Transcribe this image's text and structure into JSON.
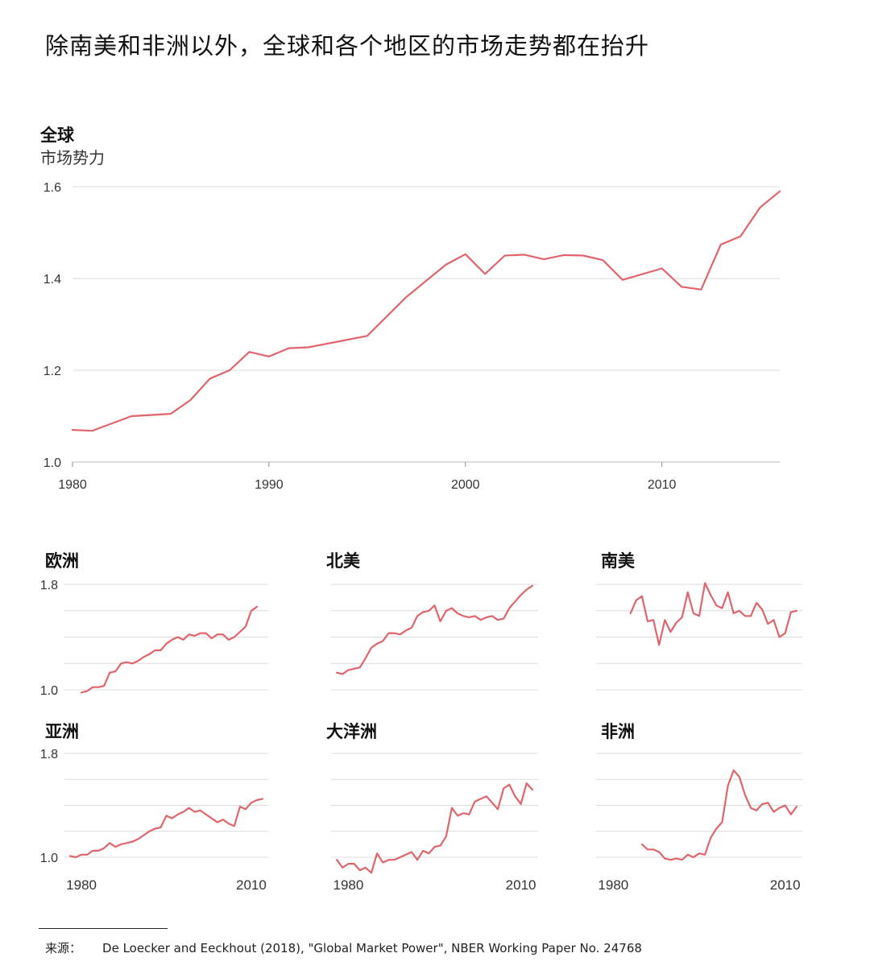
{
  "title": "除南美和非洲以外，全球和各个地区的市场走势都在抬升",
  "source": {
    "label": "来源：",
    "text": "De Loecker and Eeckhout (2018), \"Global Market Power\", NBER Working Paper No. 24768"
  },
  "colors": {
    "line": "#e0646b",
    "grid": "#dcdcdc",
    "axis": "#888888",
    "text": "#333333"
  },
  "chart_data": [
    {
      "type": "line",
      "title": "全球",
      "ylabel": "市场势力",
      "xlim": [
        1980,
        2016
      ],
      "ylim": [
        1.0,
        1.6
      ],
      "yticks": [
        1.0,
        1.2,
        1.4,
        1.6
      ],
      "ytick_labels": [
        "1.0",
        "1.2",
        "1.4",
        "1.6"
      ],
      "xticks": [
        1980,
        1990,
        2000,
        2010
      ],
      "xtick_labels": [
        "1980",
        "1990",
        "2000",
        "2010"
      ],
      "x": [
        1980,
        1981,
        1983,
        1985,
        1986,
        1987,
        1988,
        1989,
        1990,
        1991,
        1992,
        1995,
        1997,
        1999,
        2000,
        2001,
        2002,
        2003,
        2004,
        2005,
        2006,
        2007,
        2008,
        2010,
        2011,
        2012,
        2013,
        2014,
        2015,
        2016
      ],
      "y": [
        1.07,
        1.068,
        1.1,
        1.105,
        1.135,
        1.182,
        1.2,
        1.24,
        1.23,
        1.248,
        1.25,
        1.275,
        1.36,
        1.43,
        1.453,
        1.41,
        1.45,
        1.452,
        1.442,
        1.451,
        1.45,
        1.44,
        1.397,
        1.422,
        1.382,
        1.376,
        1.474,
        1.492,
        1.555,
        1.59
      ]
    },
    {
      "type": "line",
      "title": "欧洲",
      "xlim": [
        1977,
        2013
      ],
      "ylim": [
        1.0,
        1.8
      ],
      "yticks": [
        1.0,
        1.2,
        1.4,
        1.6,
        1.8
      ],
      "ytick_labels": [
        "1.0",
        "",
        "",
        "",
        "1.8"
      ],
      "xticks": [],
      "xtick_labels": [],
      "x": [
        1980,
        1981,
        1982,
        1983,
        1984,
        1985,
        1986,
        1987,
        1988,
        1989,
        1990,
        1991,
        1992,
        1993,
        1994,
        1995,
        1996,
        1997,
        1998,
        1999,
        2000,
        2001,
        2002,
        2003,
        2004,
        2005,
        2006,
        2007,
        2008,
        2009,
        2010,
        2011
      ],
      "y": [
        0.98,
        0.99,
        1.02,
        1.02,
        1.03,
        1.13,
        1.14,
        1.2,
        1.21,
        1.2,
        1.22,
        1.25,
        1.27,
        1.3,
        1.3,
        1.35,
        1.38,
        1.4,
        1.38,
        1.42,
        1.41,
        1.43,
        1.43,
        1.39,
        1.42,
        1.42,
        1.38,
        1.4,
        1.44,
        1.48,
        1.6,
        1.63
      ]
    },
    {
      "type": "line",
      "title": "北美",
      "xlim": [
        1977,
        2013
      ],
      "ylim": [
        1.0,
        1.8
      ],
      "yticks": [
        1.0,
        1.2,
        1.4,
        1.6,
        1.8
      ],
      "ytick_labels": [
        "",
        "",
        "",
        "",
        ""
      ],
      "xticks": [],
      "xtick_labels": [],
      "x": [
        1978,
        1979,
        1980,
        1981,
        1982,
        1983,
        1984,
        1985,
        1986,
        1987,
        1988,
        1989,
        1990,
        1991,
        1992,
        1993,
        1994,
        1995,
        1996,
        1997,
        1998,
        1999,
        2000,
        2001,
        2002,
        2003,
        2004,
        2005,
        2006,
        2007,
        2008,
        2009,
        2010,
        2011,
        2012
      ],
      "y": [
        1.13,
        1.12,
        1.15,
        1.16,
        1.17,
        1.24,
        1.32,
        1.35,
        1.37,
        1.43,
        1.43,
        1.42,
        1.45,
        1.47,
        1.56,
        1.59,
        1.6,
        1.64,
        1.52,
        1.6,
        1.62,
        1.58,
        1.56,
        1.55,
        1.56,
        1.53,
        1.55,
        1.56,
        1.53,
        1.54,
        1.62,
        1.67,
        1.72,
        1.76,
        1.79
      ]
    },
    {
      "type": "line",
      "title": "南美",
      "xlim": [
        1977,
        2013
      ],
      "ylim": [
        1.0,
        1.8
      ],
      "yticks": [
        1.0,
        1.2,
        1.4,
        1.6,
        1.8
      ],
      "ytick_labels": [
        "",
        "",
        "",
        "",
        ""
      ],
      "xticks": [],
      "xtick_labels": [],
      "x": [
        1983,
        1984,
        1985,
        1986,
        1987,
        1988,
        1989,
        1990,
        1991,
        1992,
        1993,
        1994,
        1995,
        1996,
        1997,
        1998,
        1999,
        2000,
        2001,
        2002,
        2003,
        2004,
        2005,
        2006,
        2007,
        2008,
        2009,
        2010,
        2011,
        2012
      ],
      "y": [
        1.58,
        1.68,
        1.71,
        1.52,
        1.53,
        1.34,
        1.53,
        1.44,
        1.51,
        1.55,
        1.74,
        1.58,
        1.56,
        1.81,
        1.72,
        1.64,
        1.62,
        1.74,
        1.58,
        1.6,
        1.56,
        1.56,
        1.66,
        1.61,
        1.5,
        1.53,
        1.4,
        1.43,
        1.59,
        1.6
      ]
    },
    {
      "type": "line",
      "title": "亚洲",
      "xlim": [
        1977,
        2013
      ],
      "ylim": [
        1.0,
        1.8
      ],
      "yticks": [
        1.0,
        1.2,
        1.4,
        1.6,
        1.8
      ],
      "ytick_labels": [
        "1.0",
        "",
        "",
        "",
        "1.8"
      ],
      "xticks": [
        1980,
        2010
      ],
      "xtick_labels": [
        "1980",
        "2010"
      ],
      "x": [
        1978,
        1979,
        1980,
        1981,
        1982,
        1983,
        1984,
        1985,
        1986,
        1987,
        1988,
        1989,
        1990,
        1991,
        1992,
        1993,
        1994,
        1995,
        1996,
        1997,
        1998,
        1999,
        2000,
        2001,
        2002,
        2003,
        2004,
        2005,
        2006,
        2007,
        2008,
        2009,
        2010,
        2011,
        2012
      ],
      "y": [
        1.01,
        1.0,
        1.02,
        1.02,
        1.05,
        1.05,
        1.07,
        1.11,
        1.08,
        1.1,
        1.11,
        1.12,
        1.14,
        1.17,
        1.2,
        1.22,
        1.23,
        1.32,
        1.3,
        1.33,
        1.35,
        1.38,
        1.35,
        1.36,
        1.33,
        1.3,
        1.27,
        1.29,
        1.26,
        1.24,
        1.39,
        1.37,
        1.42,
        1.44,
        1.45
      ]
    },
    {
      "type": "line",
      "title": "大洋洲",
      "xlim": [
        1977,
        2013
      ],
      "ylim": [
        1.0,
        1.8
      ],
      "yticks": [
        1.0,
        1.2,
        1.4,
        1.6,
        1.8
      ],
      "ytick_labels": [
        "",
        "",
        "",
        "",
        ""
      ],
      "xticks": [
        1980,
        2010
      ],
      "xtick_labels": [
        "1980",
        "2010"
      ],
      "x": [
        1978,
        1979,
        1980,
        1981,
        1982,
        1983,
        1984,
        1985,
        1986,
        1987,
        1988,
        1991,
        1992,
        1993,
        1994,
        1995,
        1996,
        1997,
        1998,
        1999,
        2000,
        2001,
        2002,
        2004,
        2006,
        2007,
        2008,
        2009,
        2010,
        2011,
        2012
      ],
      "y": [
        0.98,
        0.92,
        0.95,
        0.95,
        0.9,
        0.92,
        0.88,
        1.03,
        0.96,
        0.98,
        0.98,
        1.04,
        0.98,
        1.05,
        1.03,
        1.08,
        1.09,
        1.16,
        1.38,
        1.32,
        1.34,
        1.33,
        1.43,
        1.47,
        1.37,
        1.53,
        1.56,
        1.47,
        1.41,
        1.57,
        1.52
      ]
    },
    {
      "type": "line",
      "title": "非洲",
      "xlim": [
        1977,
        2013
      ],
      "ylim": [
        1.0,
        1.8
      ],
      "yticks": [
        1.0,
        1.2,
        1.4,
        1.6,
        1.8
      ],
      "ytick_labels": [
        "",
        "",
        "",
        "",
        ""
      ],
      "xticks": [
        1980,
        2010
      ],
      "xtick_labels": [
        "1980",
        "2010"
      ],
      "x": [
        1985,
        1986,
        1987,
        1988,
        1989,
        1990,
        1991,
        1992,
        1993,
        1994,
        1995,
        1996,
        1997,
        1998,
        1999,
        2000,
        2001,
        2002,
        2003,
        2004,
        2005,
        2006,
        2007,
        2008,
        2009,
        2010,
        2011,
        2012
      ],
      "y": [
        1.1,
        1.06,
        1.06,
        1.04,
        0.99,
        0.98,
        0.99,
        0.98,
        1.02,
        1.0,
        1.03,
        1.02,
        1.15,
        1.22,
        1.27,
        1.55,
        1.67,
        1.62,
        1.48,
        1.38,
        1.36,
        1.41,
        1.42,
        1.35,
        1.38,
        1.4,
        1.33,
        1.39
      ]
    }
  ]
}
